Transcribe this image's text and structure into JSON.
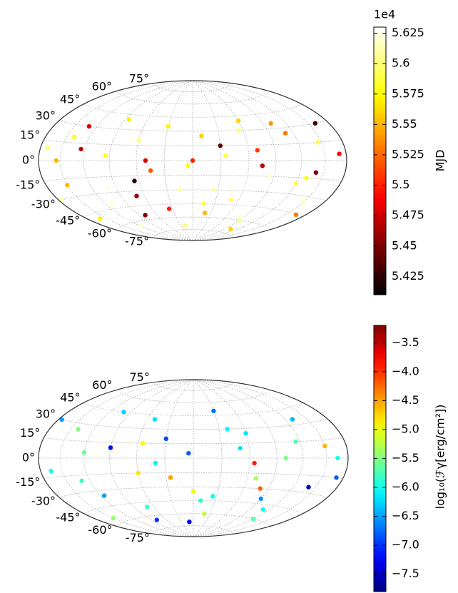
{
  "chart_data": [
    {
      "type": "scatter",
      "projection": "hammer",
      "colormap": "hot",
      "grid": true,
      "xticks": [
        -150,
        -120,
        -90,
        -60,
        -30,
        0,
        30,
        60,
        90,
        120,
        150
      ],
      "yticks": [
        {
          "value": -75,
          "label": "-75°"
        },
        {
          "value": -60,
          "label": "-60°"
        },
        {
          "value": -45,
          "label": "-45°"
        },
        {
          "value": -30,
          "label": "-30°"
        },
        {
          "value": -15,
          "label": "-15°"
        },
        {
          "value": 0,
          "label": "0°"
        },
        {
          "value": 15,
          "label": "15°"
        },
        {
          "value": 30,
          "label": "30°"
        },
        {
          "value": 45,
          "label": "45°"
        },
        {
          "value": 60,
          "label": "60°"
        },
        {
          "value": 75,
          "label": "75°"
        }
      ],
      "x": [
        -170,
        -150,
        -130,
        -110,
        -95,
        -80,
        -60,
        -45,
        -30,
        -15,
        0,
        15,
        30,
        45,
        60,
        75,
        90,
        110,
        130,
        150,
        170,
        -160,
        -120,
        -70,
        -20,
        20,
        70,
        120,
        160,
        -140,
        -100,
        -50,
        10,
        50,
        100,
        140,
        -175,
        -85,
        -35,
        35,
        85,
        165,
        -125,
        -5,
        55,
        105,
        -65,
        25,
        -155,
        145
      ],
      "y": [
        10,
        -20,
        30,
        -40,
        5,
        -55,
        20,
        -10,
        35,
        -30,
        0,
        -45,
        15,
        -25,
        40,
        -5,
        -60,
        25,
        -15,
        -35,
        5,
        -50,
        -65,
        -35,
        -70,
        -55,
        10,
        -20,
        30,
        20,
        -25,
        0,
        25,
        -40,
        35,
        -10,
        -30,
        40,
        -50,
        5,
        -15,
        -45,
        10,
        -5,
        30,
        -70,
        -20,
        -30,
        0,
        15
      ],
      "c": [
        5.6,
        5.55,
        5.48,
        5.62,
        5.58,
        5.45,
        5.6,
        5.52,
        5.57,
        5.61,
        5.5,
        5.59,
        5.44,
        5.62,
        5.56,
        5.47,
        5.6,
        5.53,
        5.58,
        5.61,
        5.49,
        5.57,
        5.62,
        5.46,
        5.6,
        5.55,
        5.51,
        5.59,
        5.43,
        5.58,
        5.62,
        5.48,
        5.56,
        5.6,
        5.54,
        5.45,
        5.61,
        5.57,
        5.5,
        5.59,
        5.62,
        5.53,
        5.47,
        5.58,
        5.6,
        5.56,
        5.42,
        5.61,
        5.55,
        5.59
      ],
      "clim": [
        5.41,
        5.63
      ],
      "cticks": [
        5.425,
        5.45,
        5.475,
        5.5,
        5.525,
        5.55,
        5.575,
        5.6,
        5.625
      ],
      "coffset": "1e4",
      "clabel": "MJD"
    },
    {
      "type": "scatter",
      "projection": "hammer",
      "colormap": "jet",
      "grid": true,
      "xticks": [
        -150,
        -120,
        -90,
        -60,
        -30,
        0,
        30,
        60,
        90,
        120,
        150
      ],
      "yticks": [
        {
          "value": -75,
          "label": "-75°"
        },
        {
          "value": -60,
          "label": "-60°"
        },
        {
          "value": -45,
          "label": "-45°"
        },
        {
          "value": -30,
          "label": "-30°"
        },
        {
          "value": -15,
          "label": "-15°"
        },
        {
          "value": 0,
          "label": "0°"
        },
        {
          "value": 15,
          "label": "15°"
        },
        {
          "value": 30,
          "label": "30°"
        },
        {
          "value": 45,
          "label": "45°"
        },
        {
          "value": 60,
          "label": "60°"
        },
        {
          "value": 75,
          "label": "75°"
        }
      ],
      "x": [
        -165,
        -140,
        -115,
        -90,
        -70,
        -50,
        -25,
        -5,
        20,
        40,
        65,
        90,
        115,
        140,
        165,
        -150,
        -100,
        -60,
        -30,
        10,
        50,
        80,
        130,
        -120,
        -80,
        -40,
        0,
        30,
        70,
        110,
        150,
        -175,
        -130,
        -10,
        60,
        100,
        170,
        -55,
        25,
        120
      ],
      "y": [
        -10,
        25,
        -35,
        10,
        -50,
        40,
        -20,
        5,
        -60,
        30,
        -5,
        -40,
        15,
        -25,
        0,
        -55,
        45,
        -15,
        20,
        -45,
        10,
        -30,
        35,
        5,
        -65,
        -5,
        -35,
        50,
        -20,
        -50,
        10,
        30,
        -20,
        -70,
        25,
        0,
        -15,
        15,
        -40,
        -60
      ],
      "c": [
        -6.0,
        -5.5,
        -6.5,
        -7.2,
        -5.8,
        -6.2,
        -4.5,
        -6.8,
        -5.2,
        -6.1,
        -3.9,
        -6.6,
        -5.7,
        -7.5,
        -6.0,
        -5.4,
        -6.3,
        -4.8,
        -6.9,
        -5.9,
        -6.2,
        -4.2,
        -6.4,
        -5.6,
        -7.0,
        -6.1,
        -5.0,
        -6.7,
        -5.3,
        -6.0,
        -4.6,
        -6.5,
        -5.8,
        -7.3,
        -6.2,
        -5.5,
        -6.8,
        -4.9,
        -6.0,
        -5.7
      ],
      "clim": [
        -7.8,
        -3.2
      ],
      "cticks": [
        {
          "value": -7.5,
          "label": "−7.5"
        },
        {
          "value": -7.0,
          "label": "−7.0"
        },
        {
          "value": -6.5,
          "label": "−6.5"
        },
        {
          "value": -6.0,
          "label": "−6.0"
        },
        {
          "value": -5.5,
          "label": "−5.5"
        },
        {
          "value": -5.0,
          "label": "−5.0"
        },
        {
          "value": -4.5,
          "label": "−4.5"
        },
        {
          "value": -4.0,
          "label": "−4.0"
        },
        {
          "value": -3.5,
          "label": "−3.5"
        }
      ],
      "clabel": "log₁₀(ℱγ[erg/cm²])"
    }
  ]
}
